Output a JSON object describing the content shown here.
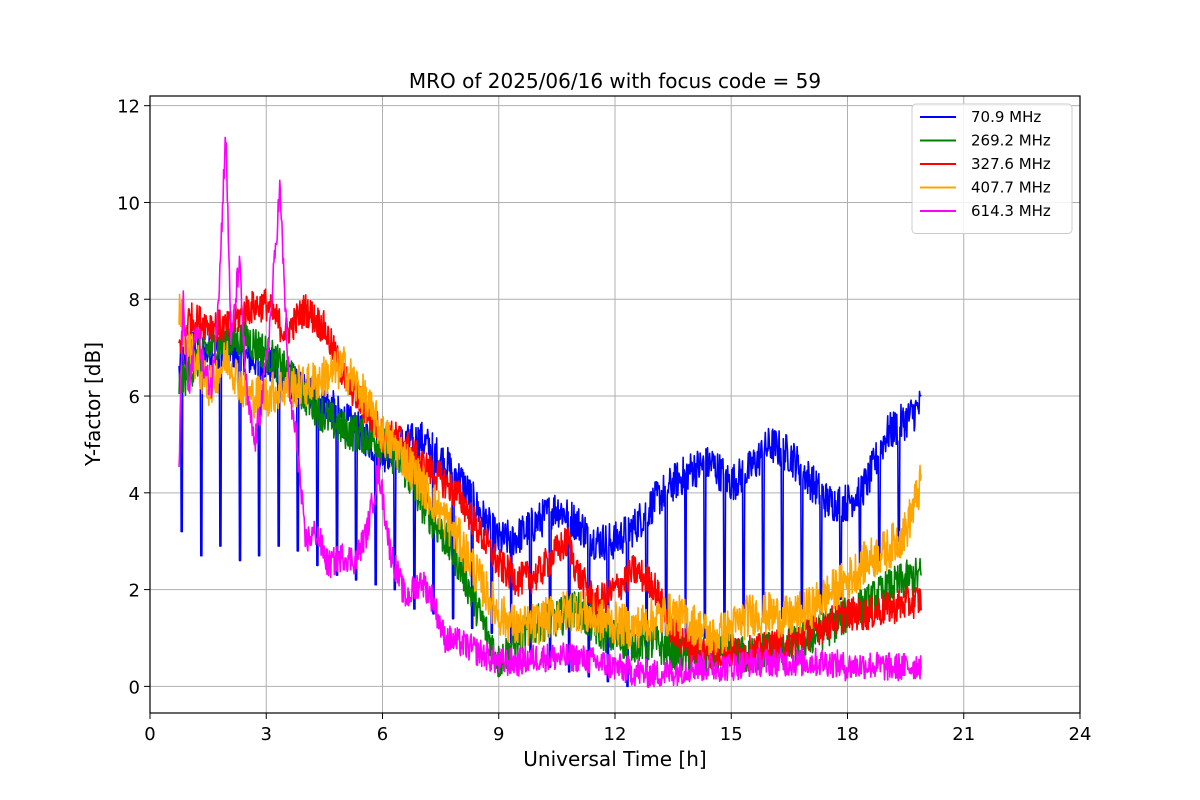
{
  "chart_data": {
    "type": "line",
    "title": "MRO of 2025/06/16 with focus code = 59",
    "xlabel": "Universal Time [h]",
    "ylabel": "Y-factor [dB]",
    "xlim": [
      0,
      24
    ],
    "ylim": [
      -0.55,
      12.2
    ],
    "xticks": [
      0,
      3,
      6,
      9,
      12,
      15,
      18,
      21,
      24
    ],
    "yticks": [
      0,
      2,
      4,
      6,
      8,
      10,
      12
    ],
    "grid": true,
    "legend_position": "top-right",
    "series": [
      {
        "name": " 70.9 MHz",
        "color": "#0000ff",
        "band": 0.4,
        "x": [
          0.75,
          1.0,
          1.5,
          2.0,
          2.5,
          3.0,
          3.5,
          4.0,
          4.5,
          5.0,
          5.5,
          6.0,
          6.5,
          7.0,
          7.5,
          8.0,
          8.5,
          9.0,
          9.5,
          10.0,
          10.5,
          11.0,
          11.5,
          12.0,
          12.5,
          13.0,
          13.5,
          14.0,
          14.5,
          15.0,
          15.5,
          16.0,
          16.5,
          17.0,
          17.5,
          18.0,
          18.5,
          19.0,
          19.5,
          19.9
        ],
        "y": [
          6.5,
          7.0,
          6.9,
          7.0,
          6.8,
          6.7,
          6.4,
          6.1,
          5.9,
          5.5,
          5.2,
          4.8,
          5.0,
          5.1,
          4.7,
          4.3,
          3.6,
          3.0,
          3.1,
          3.4,
          3.7,
          3.4,
          3.0,
          3.0,
          3.3,
          3.8,
          4.2,
          4.5,
          4.6,
          4.2,
          4.5,
          5.0,
          4.8,
          4.3,
          3.8,
          3.8,
          4.2,
          5.2,
          5.5,
          5.8
        ],
        "dip_spacing_h": 0.5,
        "dips": [
          3.2,
          2.7,
          2.9,
          2.6,
          2.7,
          2.9,
          2.8,
          2.5,
          2.3,
          2.2,
          2.1,
          2.0,
          1.6,
          1.5,
          1.4,
          1.2,
          1.1,
          0.9,
          0.7,
          0.4,
          0.3,
          0.2,
          0.1,
          0.0,
          0.4,
          0.6,
          0.9,
          1.0,
          1.2,
          1.3,
          1.4,
          1.4,
          1.5,
          1.5,
          1.8,
          2.2,
          2.6,
          3.0
        ]
      },
      {
        "name": "269.2 MHz",
        "color": "#008000",
        "band": 0.4,
        "x": [
          0.75,
          1.0,
          1.5,
          2.0,
          2.5,
          3.0,
          3.5,
          4.0,
          4.5,
          5.0,
          5.5,
          6.0,
          6.5,
          7.0,
          7.5,
          8.0,
          8.5,
          9.0,
          9.5,
          10.0,
          10.5,
          11.0,
          11.5,
          12.0,
          12.5,
          13.0,
          13.5,
          14.0,
          14.5,
          15.0,
          15.5,
          16.0,
          16.5,
          17.0,
          17.5,
          18.0,
          18.5,
          19.0,
          19.5,
          19.9
        ],
        "y": [
          6.2,
          6.5,
          7.0,
          7.1,
          7.2,
          6.9,
          6.5,
          6.0,
          5.6,
          5.3,
          5.2,
          5.0,
          4.6,
          3.8,
          3.2,
          2.5,
          1.5,
          0.5,
          1.0,
          1.3,
          1.4,
          1.6,
          1.2,
          1.0,
          0.9,
          0.9,
          0.7,
          0.6,
          0.6,
          0.7,
          0.6,
          0.8,
          0.8,
          1.0,
          1.2,
          1.5,
          1.7,
          2.0,
          2.2,
          2.3
        ],
        "dip_spacing_h": 0,
        "dips": []
      },
      {
        "name": "327.6 MHz",
        "color": "#ff0000",
        "band": 0.35,
        "x": [
          0.75,
          1.0,
          1.5,
          2.0,
          2.5,
          3.0,
          3.5,
          4.0,
          4.5,
          5.0,
          5.5,
          6.0,
          6.5,
          7.0,
          7.5,
          8.0,
          8.5,
          9.0,
          9.5,
          10.0,
          10.5,
          10.8,
          11.0,
          11.5,
          12.0,
          12.5,
          13.0,
          13.5,
          14.0,
          14.5,
          15.0,
          15.5,
          16.0,
          16.5,
          17.0,
          17.5,
          18.0,
          18.5,
          19.0,
          19.5,
          19.9
        ],
        "y": [
          7.0,
          7.6,
          7.5,
          7.4,
          7.8,
          7.9,
          7.3,
          7.8,
          7.4,
          6.4,
          5.8,
          5.2,
          5.1,
          4.6,
          4.3,
          3.9,
          3.2,
          2.5,
          2.2,
          2.3,
          2.8,
          3.0,
          2.4,
          1.7,
          2.0,
          2.4,
          2.1,
          1.1,
          0.8,
          0.7,
          0.7,
          0.7,
          0.8,
          0.9,
          1.1,
          1.3,
          1.5,
          1.5,
          1.6,
          1.7,
          1.8
        ],
        "dip_spacing_h": 0,
        "dips": []
      },
      {
        "name": "407.7 MHz",
        "color": "#ffa500",
        "band": 0.45,
        "x": [
          0.75,
          1.0,
          1.5,
          2.0,
          2.5,
          3.0,
          3.5,
          4.0,
          4.5,
          5.0,
          5.5,
          6.0,
          6.5,
          7.0,
          7.5,
          8.0,
          8.5,
          9.0,
          9.5,
          10.0,
          10.5,
          11.0,
          11.5,
          12.0,
          12.5,
          13.0,
          13.5,
          14.0,
          14.5,
          15.0,
          15.5,
          16.0,
          16.5,
          17.0,
          17.5,
          18.0,
          18.5,
          19.0,
          19.5,
          19.9
        ],
        "y": [
          7.8,
          7.0,
          6.2,
          6.8,
          6.0,
          6.0,
          6.2,
          6.2,
          6.4,
          6.6,
          6.0,
          5.2,
          4.8,
          4.2,
          3.6,
          3.0,
          2.2,
          1.5,
          1.2,
          1.3,
          1.5,
          1.6,
          1.4,
          1.3,
          1.2,
          1.4,
          1.5,
          1.3,
          1.0,
          1.2,
          1.5,
          1.5,
          1.4,
          1.6,
          1.9,
          2.2,
          2.6,
          2.8,
          3.2,
          4.2
        ],
        "dip_spacing_h": 0,
        "dips": []
      },
      {
        "name": "614.3 MHz",
        "color": "#ff00ff",
        "band": 0.3,
        "x": [
          0.75,
          0.85,
          1.0,
          1.2,
          1.4,
          1.6,
          1.8,
          1.95,
          2.1,
          2.3,
          2.5,
          2.7,
          2.9,
          3.1,
          3.35,
          3.6,
          3.8,
          4.0,
          4.3,
          4.6,
          5.0,
          5.3,
          5.6,
          5.9,
          6.2,
          6.6,
          7.0,
          7.3,
          7.6,
          8.0,
          8.5,
          9.0,
          9.5,
          10.0,
          10.5,
          11.0,
          11.5,
          12.0,
          12.5,
          13.0,
          13.5,
          14.0,
          14.5,
          15.0,
          15.5,
          16.0,
          16.5,
          17.0,
          17.5,
          18.0,
          18.5,
          19.0,
          19.5,
          19.9
        ],
        "y": [
          4.5,
          8.0,
          6.0,
          7.5,
          6.5,
          6.2,
          8.5,
          11.5,
          7.0,
          8.8,
          6.0,
          5.0,
          6.0,
          7.5,
          10.3,
          6.0,
          5.0,
          3.0,
          3.2,
          2.5,
          2.7,
          2.6,
          3.2,
          4.5,
          2.8,
          1.8,
          2.2,
          1.8,
          1.0,
          0.9,
          0.7,
          0.5,
          0.5,
          0.6,
          0.6,
          0.6,
          0.5,
          0.4,
          0.3,
          0.25,
          0.3,
          0.4,
          0.4,
          0.4,
          0.5,
          0.5,
          0.5,
          0.5,
          0.5,
          0.4,
          0.45,
          0.4,
          0.4,
          0.45
        ],
        "dip_spacing_h": 0,
        "dips": []
      }
    ]
  }
}
